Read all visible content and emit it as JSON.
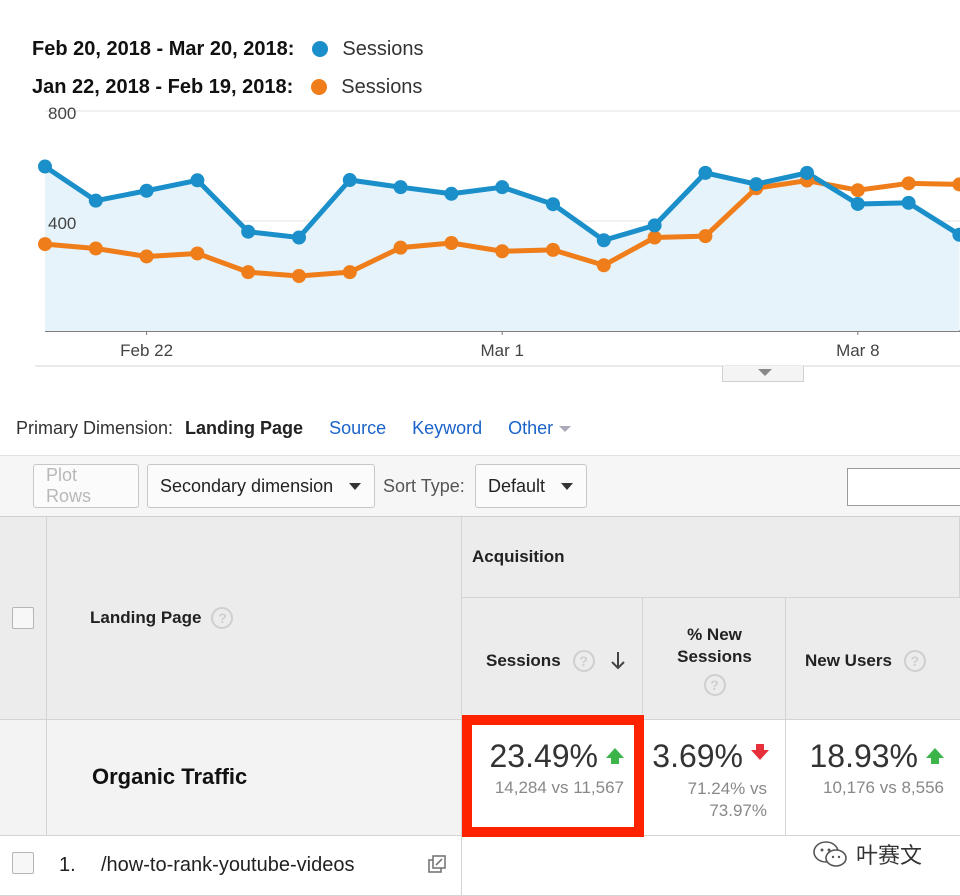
{
  "legend": [
    {
      "range": "Feb 20, 2018 - Mar 20, 2018:",
      "series": "Sessions",
      "color": "#1a8fc9"
    },
    {
      "range": "Jan 22, 2018 - Feb 19, 2018:",
      "series": "Sessions",
      "color": "#ef7d1a"
    }
  ],
  "chart_data": {
    "type": "line",
    "y_ticks": [
      "800",
      "400"
    ],
    "x_labels": [
      "Feb 22",
      "Mar 1",
      "Mar 8"
    ],
    "ylim": [
      0,
      800
    ],
    "area_fill": "#e6f3fa",
    "series": [
      {
        "name": "Sessions",
        "color": "#1a8fc9",
        "area": true,
        "values": [
          598,
          474,
          510,
          548,
          361,
          340,
          549,
          523,
          499,
          523,
          461,
          330,
          384,
          575,
          534,
          575,
          462,
          466,
          350
        ]
      },
      {
        "name": "Sessions",
        "color": "#ef7d1a",
        "area": false,
        "values": [
          316,
          300,
          271,
          282,
          214,
          200,
          214,
          303,
          320,
          290,
          295,
          239,
          340,
          345,
          519,
          547,
          512,
          537,
          533
        ]
      }
    ]
  },
  "primary_dimension": {
    "label": "Primary Dimension:",
    "active": "Landing Page",
    "links": [
      "Source",
      "Keyword"
    ],
    "other": "Other"
  },
  "toolbar": {
    "plot_rows": "Plot Rows",
    "secondary_dimension": "Secondary dimension",
    "sort_type_label": "Sort Type:",
    "sort_type_value": "Default"
  },
  "table": {
    "landing_page_header": "Landing Page",
    "acquisition_header": "Acquisition",
    "help_glyph": "?",
    "columns": [
      {
        "title": "Sessions"
      },
      {
        "title_line1": "% New",
        "title_line2": "Sessions"
      },
      {
        "title": "New Users"
      }
    ],
    "summary": {
      "label": "Organic Traffic",
      "sessions": {
        "change": "23.49%",
        "compare": "14,284 vs 11,567",
        "direction": "up"
      },
      "new_sessions": {
        "change": "3.69%",
        "compare_line1": "71.24% vs",
        "compare_line2": "73.97%",
        "direction": "down"
      },
      "new_users": {
        "change": "18.93%",
        "compare": "10,176 vs 8,556",
        "direction": "up"
      }
    },
    "rows": [
      {
        "index": "1.",
        "page": "/how-to-rank-youtube-videos"
      }
    ]
  },
  "watermark": {
    "text": "叶赛文"
  }
}
